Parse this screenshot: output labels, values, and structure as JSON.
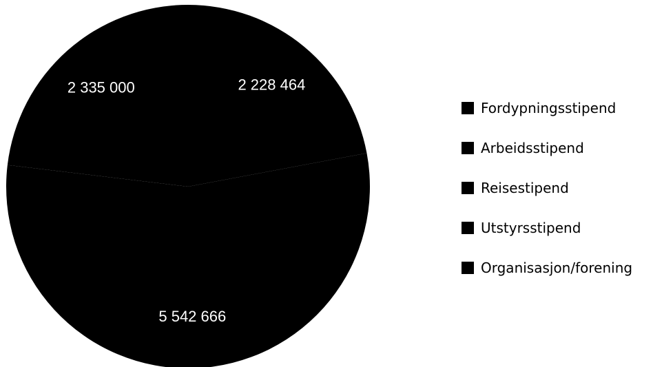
{
  "chart_data": {
    "type": "pie",
    "categories": [
      "Fordypningsstipend",
      "Arbeidsstipend",
      "Reisestipend",
      "Utstyrsstipend",
      "Organisasjon/forening"
    ],
    "values": [
      2228464,
      5542666,
      0,
      0,
      2335000
    ],
    "data_labels": [
      "2 228 464",
      "5 542 666",
      "",
      "",
      "2 335 000"
    ],
    "colors": [
      "#000000",
      "#000000",
      "#000000",
      "#000000",
      "#000000"
    ],
    "label_color": "#ffffff",
    "title": "",
    "legend_position": "right"
  }
}
